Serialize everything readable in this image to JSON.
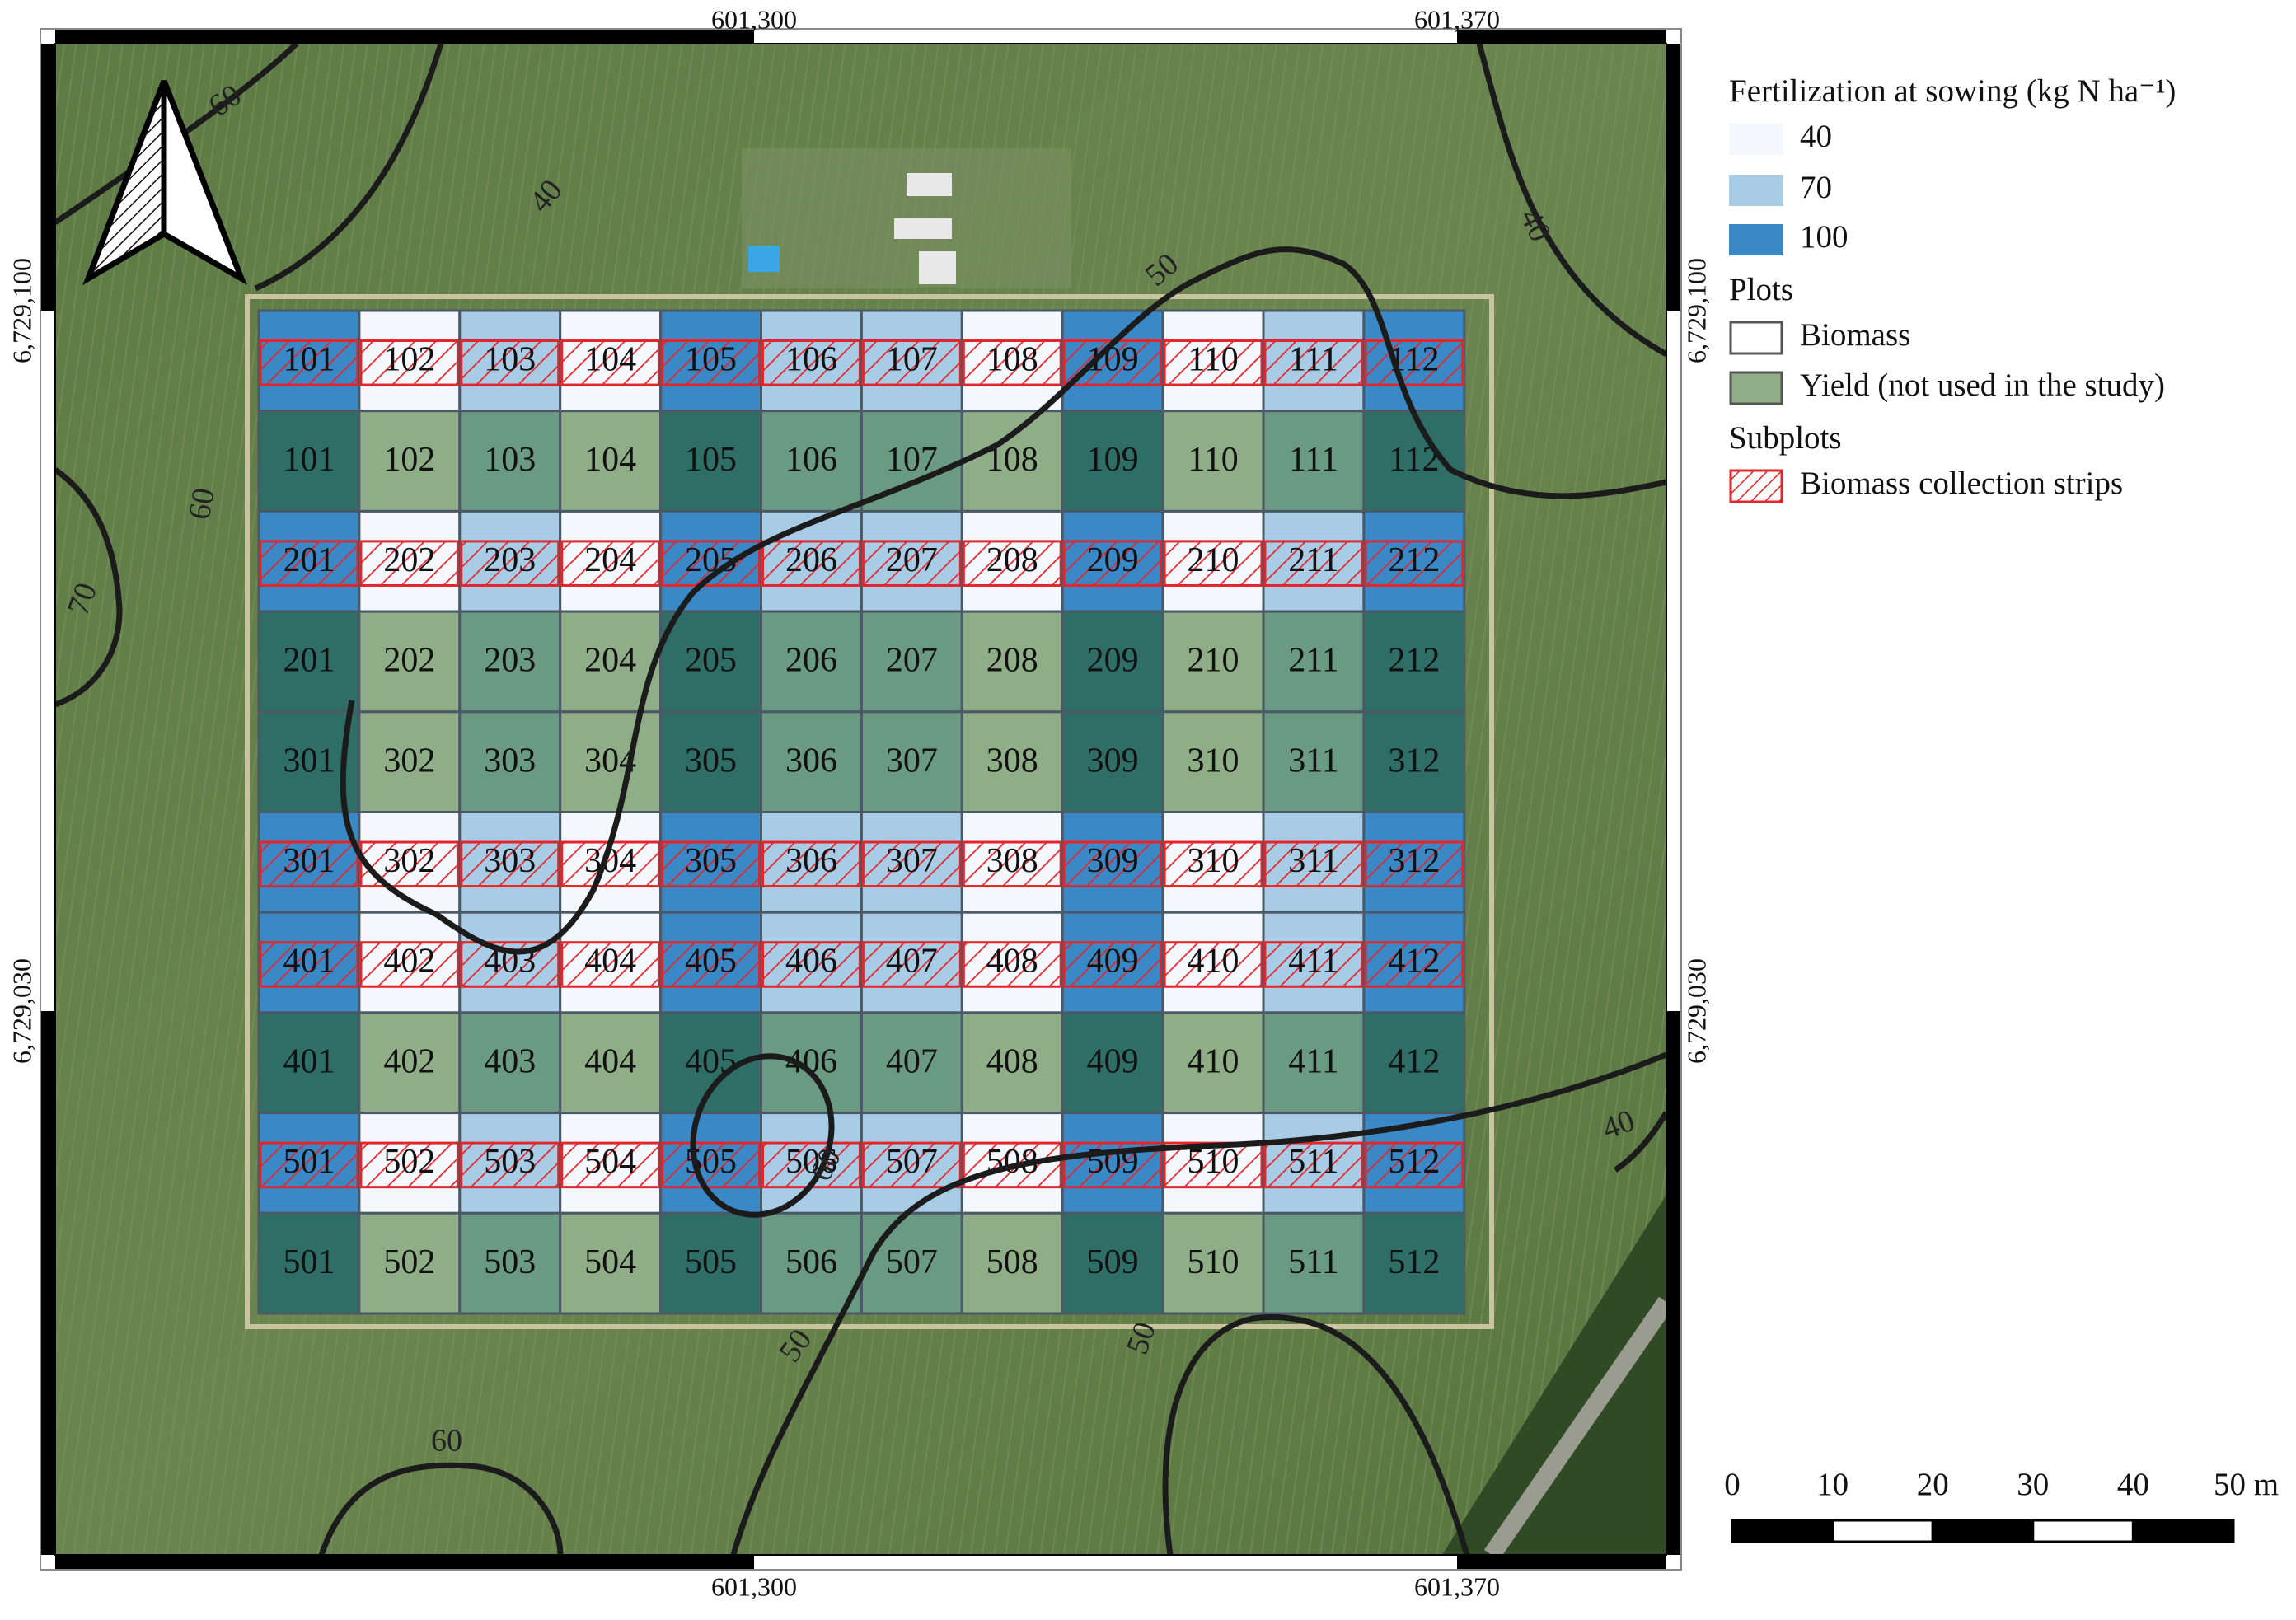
{
  "map": {
    "top_coordinates": [
      "601,300",
      "601,370"
    ],
    "bottom_coordinates": [
      "601,300",
      "601,370"
    ],
    "left_coordinates": [
      "6,729,100",
      "6,729,030"
    ],
    "right_coordinates": [
      "6,729,100",
      "6,729,030"
    ],
    "plot_colors": {
      "biomass": [
        "#3a88c6",
        "#f4f8fc",
        "#a9cce6",
        "#f4f8fc",
        "#3a88c6",
        "#a9cce6",
        "#a9cce6",
        "#f4f8fc",
        "#3a88c6",
        "#f4f8fc",
        "#a9cce6",
        "#3a88c6"
      ],
      "yield": [
        "#2f6e66",
        "#8fae87",
        "#6b9a82",
        "#8fae87",
        "#2f6e66",
        "#6b9a82",
        "#6b9a82",
        "#8fae87",
        "#2f6e66",
        "#8fae87",
        "#6b9a82",
        "#2f6e66"
      ]
    },
    "plot_rows": [
      {
        "kind": "biomass",
        "labels": [
          "101",
          "102",
          "103",
          "104",
          "105",
          "106",
          "107",
          "108",
          "109",
          "110",
          "111",
          "112"
        ]
      },
      {
        "kind": "yield",
        "labels": [
          "101",
          "102",
          "103",
          "104",
          "105",
          "106",
          "107",
          "108",
          "109",
          "110",
          "111",
          "112"
        ]
      },
      {
        "kind": "biomass",
        "labels": [
          "201",
          "202",
          "203",
          "204",
          "205",
          "206",
          "207",
          "208",
          "209",
          "210",
          "211",
          "212"
        ]
      },
      {
        "kind": "yield",
        "labels": [
          "201",
          "202",
          "203",
          "204",
          "205",
          "206",
          "207",
          "208",
          "209",
          "210",
          "211",
          "212"
        ]
      },
      {
        "kind": "yield",
        "labels": [
          "301",
          "302",
          "303",
          "304",
          "305",
          "306",
          "307",
          "308",
          "309",
          "310",
          "311",
          "312"
        ]
      },
      {
        "kind": "biomass",
        "labels": [
          "301",
          "302",
          "303",
          "304",
          "305",
          "306",
          "307",
          "308",
          "309",
          "310",
          "311",
          "312"
        ]
      },
      {
        "kind": "biomass",
        "labels": [
          "401",
          "402",
          "403",
          "404",
          "405",
          "406",
          "407",
          "408",
          "409",
          "410",
          "411",
          "412"
        ]
      },
      {
        "kind": "yield",
        "labels": [
          "401",
          "402",
          "403",
          "404",
          "405",
          "406",
          "407",
          "408",
          "409",
          "410",
          "411",
          "412"
        ]
      },
      {
        "kind": "biomass",
        "labels": [
          "501",
          "502",
          "503",
          "504",
          "505",
          "506",
          "507",
          "508",
          "509",
          "510",
          "511",
          "512"
        ]
      },
      {
        "kind": "yield",
        "labels": [
          "501",
          "502",
          "503",
          "504",
          "505",
          "506",
          "507",
          "508",
          "509",
          "510",
          "511",
          "512"
        ]
      }
    ],
    "contour_labels": [
      "60",
      "40",
      "40",
      "50",
      "60",
      "70",
      "60",
      "40",
      "50",
      "50",
      "60"
    ],
    "scale_bar": {
      "labels": [
        "0",
        "10",
        "20",
        "30",
        "40",
        "50 m"
      ]
    }
  },
  "legend": {
    "fertilization": {
      "title": "Fertilization at sowing (kg N ha⁻¹)",
      "items": [
        {
          "label": "40",
          "color": "#f4f8fc"
        },
        {
          "label": "70",
          "color": "#a9cce6"
        },
        {
          "label": "100",
          "color": "#3a88c6"
        }
      ]
    },
    "plots": {
      "title": "Plots",
      "items": [
        {
          "label": "Biomass",
          "color": "#ffffff"
        },
        {
          "label": "Yield (not used in the study)",
          "color": "#8fae87"
        }
      ]
    },
    "subplots": {
      "title": "Subplots",
      "items": [
        {
          "label": "Biomass collection strips"
        }
      ]
    }
  }
}
